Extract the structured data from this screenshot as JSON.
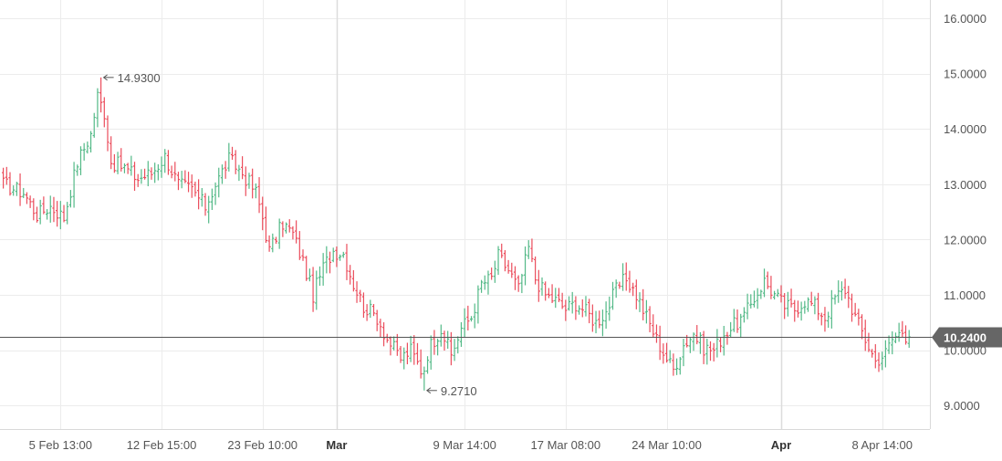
{
  "chart_data": {
    "type": "ohlc",
    "y_axis": {
      "range": [
        8.6,
        16.3
      ],
      "ticks": [
        "16.0000",
        "15.0000",
        "14.0000",
        "13.0000",
        "12.0000",
        "11.0000",
        "10.0000",
        "9.0000"
      ],
      "tick_values": [
        16,
        15,
        14,
        13,
        12,
        11,
        10,
        9
      ],
      "position": "right"
    },
    "x_axis": {
      "labels": [
        {
          "text": "5 Feb 13:00",
          "bar": 17,
          "bold": false
        },
        {
          "text": "12 Feb 15:00",
          "bar": 47,
          "bold": false
        },
        {
          "text": "23 Feb 10:00",
          "bar": 77,
          "bold": false
        },
        {
          "text": "Mar",
          "bar": 99,
          "bold": true
        },
        {
          "text": "9 Mar 14:00",
          "bar": 137,
          "bold": false
        },
        {
          "text": "17 Mar 08:00",
          "bar": 167,
          "bold": false
        },
        {
          "text": "24 Mar 10:00",
          "bar": 197,
          "bold": false
        },
        {
          "text": "Apr",
          "bar": 231,
          "bold": true
        },
        {
          "text": "8 Apr 14:00",
          "bar": 261,
          "bold": false
        }
      ]
    },
    "grid": true,
    "current_price": {
      "value": 10.24,
      "label": "10.2400"
    },
    "high_marker": {
      "value": 14.93,
      "label": "14.9300",
      "bar": 29
    },
    "low_marker": {
      "value": 9.271,
      "label": "9.2710",
      "bar": 125
    },
    "colors": {
      "up": "#53b987",
      "down": "#eb4d5c",
      "grid": "#ececec",
      "axis_text": "#555555",
      "price_line": "#555555",
      "price_badge": "#666666"
    },
    "close_path": [
      [
        0,
        13.0
      ],
      [
        6,
        12.85
      ],
      [
        10,
        12.45
      ],
      [
        14,
        12.6
      ],
      [
        18,
        12.4
      ],
      [
        22,
        13.4
      ],
      [
        26,
        13.9
      ],
      [
        28,
        14.6
      ],
      [
        30,
        14.3
      ],
      [
        32,
        13.4
      ],
      [
        36,
        13.3
      ],
      [
        40,
        13.1
      ],
      [
        44,
        13.2
      ],
      [
        48,
        13.5
      ],
      [
        52,
        13.0
      ],
      [
        56,
        12.9
      ],
      [
        60,
        12.6
      ],
      [
        63,
        13.0
      ],
      [
        67,
        13.45
      ],
      [
        71,
        13.2
      ],
      [
        75,
        12.85
      ],
      [
        77,
        12.4
      ],
      [
        79,
        11.8
      ],
      [
        83,
        12.3
      ],
      [
        86,
        12.1
      ],
      [
        89,
        11.6
      ],
      [
        92,
        11.0
      ],
      [
        95,
        11.5
      ],
      [
        98,
        11.8
      ],
      [
        101,
        11.75
      ],
      [
        104,
        11.2
      ],
      [
        107,
        10.8
      ],
      [
        111,
        10.6
      ],
      [
        114,
        10.2
      ],
      [
        118,
        9.85
      ],
      [
        121,
        10.0
      ],
      [
        124,
        9.65
      ],
      [
        127,
        10.1
      ],
      [
        130,
        10.4
      ],
      [
        133,
        9.9
      ],
      [
        136,
        10.4
      ],
      [
        139,
        10.6
      ],
      [
        142,
        11.2
      ],
      [
        145,
        11.3
      ],
      [
        147,
        11.7
      ],
      [
        150,
        11.45
      ],
      [
        153,
        11.1
      ],
      [
        156,
        11.85
      ],
      [
        158,
        11.3
      ],
      [
        161,
        11.0
      ],
      [
        164,
        10.9
      ],
      [
        167,
        10.75
      ],
      [
        170,
        10.85
      ],
      [
        173,
        10.7
      ],
      [
        176,
        10.5
      ],
      [
        179,
        10.7
      ],
      [
        182,
        11.1
      ],
      [
        185,
        11.3
      ],
      [
        188,
        11.0
      ],
      [
        191,
        10.6
      ],
      [
        194,
        10.2
      ],
      [
        197,
        9.85
      ],
      [
        199,
        9.65
      ],
      [
        202,
        10.1
      ],
      [
        205,
        10.3
      ],
      [
        208,
        10.05
      ],
      [
        211,
        10.0
      ],
      [
        214,
        10.3
      ],
      [
        217,
        10.45
      ],
      [
        220,
        10.6
      ],
      [
        223,
        10.95
      ],
      [
        226,
        11.25
      ],
      [
        229,
        11.0
      ],
      [
        232,
        10.8
      ],
      [
        235,
        10.75
      ],
      [
        238,
        10.9
      ],
      [
        241,
        10.8
      ],
      [
        244,
        10.6
      ],
      [
        247,
        10.95
      ],
      [
        250,
        11.1
      ],
      [
        253,
        10.6
      ],
      [
        256,
        10.2
      ],
      [
        259,
        9.8
      ],
      [
        262,
        9.95
      ],
      [
        264,
        10.2
      ],
      [
        267,
        10.35
      ],
      [
        269,
        10.2
      ]
    ],
    "bars_total": 270
  }
}
